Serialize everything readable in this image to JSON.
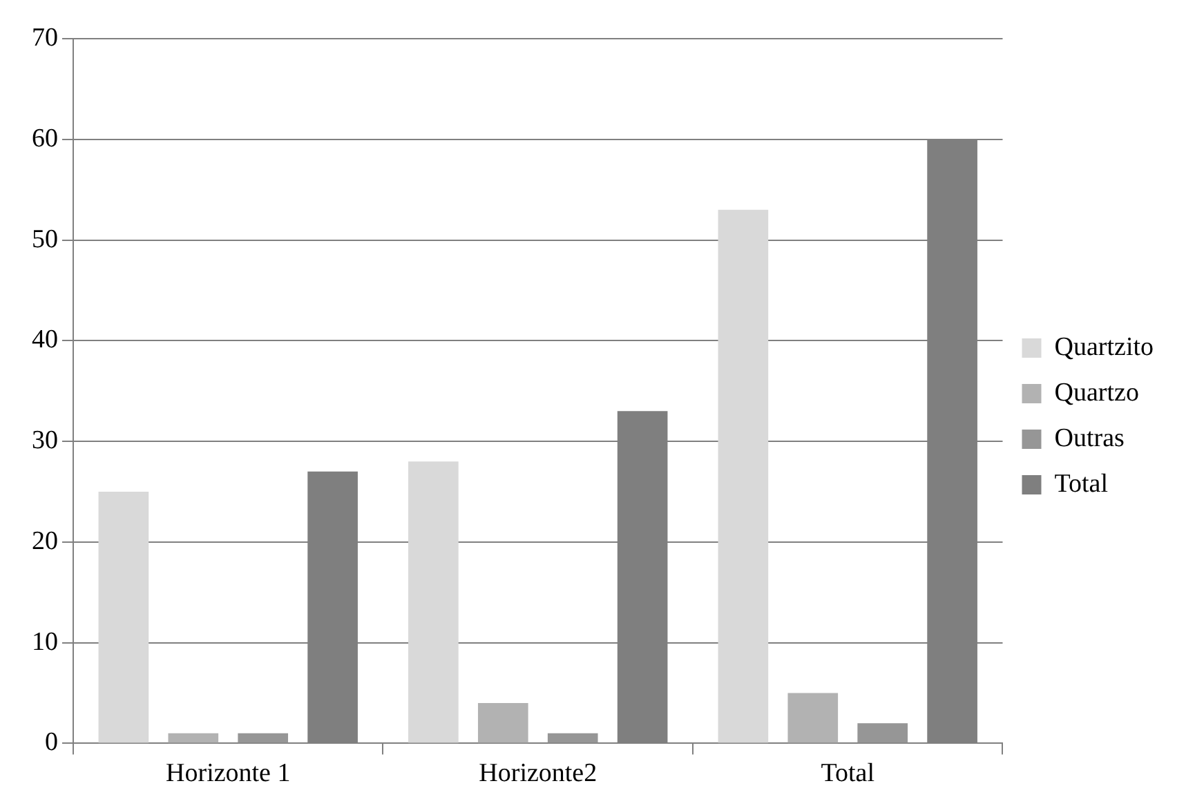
{
  "chart_data": {
    "type": "bar",
    "categories": [
      "Horizonte 1",
      "Horizonte2",
      "Total"
    ],
    "series": [
      {
        "name": "Quartzito",
        "color": "#d9d9d9",
        "values": [
          25,
          28,
          53
        ]
      },
      {
        "name": "Quartzo",
        "color": "#b2b2b2",
        "values": [
          1,
          4,
          5
        ]
      },
      {
        "name": "Outras",
        "color": "#969696",
        "values": [
          1,
          1,
          2
        ]
      },
      {
        "name": "Total",
        "color": "#7f7f7f",
        "values": [
          27,
          33,
          60
        ]
      }
    ],
    "ylim": [
      0,
      70
    ],
    "yticks": [
      0,
      10,
      20,
      30,
      40,
      50,
      60,
      70
    ],
    "grid": "y",
    "legend": "right"
  }
}
